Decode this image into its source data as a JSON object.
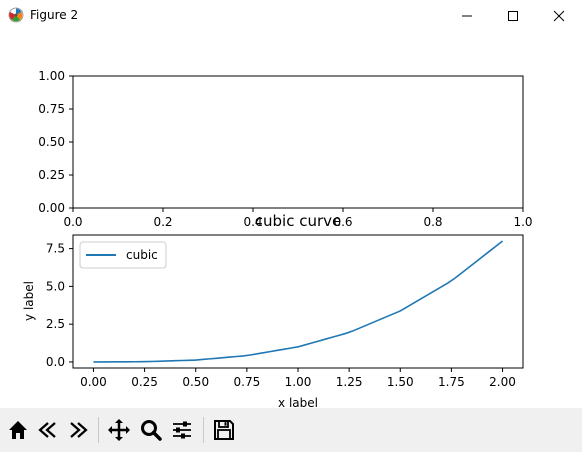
{
  "window": {
    "title": "Figure 2"
  },
  "figure": {
    "top_axes": {
      "xticks": [
        "0.0",
        "0.2",
        "0.4",
        "0.6",
        "0.8",
        "1.0"
      ],
      "xtick_values": [
        0,
        0.2,
        0.4,
        0.6,
        0.8,
        1.0
      ],
      "yticks": [
        "0.00",
        "0.25",
        "0.50",
        "0.75",
        "1.00"
      ],
      "ytick_values": [
        0,
        0.25,
        0.5,
        0.75,
        1.0
      ]
    }
  },
  "chart_data": {
    "type": "line",
    "title": "cubic curve",
    "xlabel": "x label",
    "ylabel": "y label",
    "xlim": [
      -0.1,
      2.1
    ],
    "ylim": [
      -0.4,
      8.4
    ],
    "xticks": [
      0.0,
      0.25,
      0.5,
      0.75,
      1.0,
      1.25,
      1.5,
      1.75,
      2.0
    ],
    "xtick_labels": [
      "0.00",
      "0.25",
      "0.50",
      "0.75",
      "1.00",
      "1.25",
      "1.50",
      "1.75",
      "2.00"
    ],
    "yticks": [
      0.0,
      2.5,
      5.0,
      7.5
    ],
    "ytick_labels": [
      "0.0",
      "2.5",
      "5.0",
      "7.5"
    ],
    "grid": false,
    "legend_position": "upper-left",
    "series": [
      {
        "name": "cubic",
        "color": "#1f77b4",
        "x": [
          0.0,
          0.25,
          0.5,
          0.75,
          1.0,
          1.25,
          1.5,
          1.75,
          2.0
        ],
        "y": [
          0.0,
          0.016,
          0.125,
          0.42,
          1.0,
          1.95,
          3.375,
          5.36,
          8.0
        ]
      }
    ]
  },
  "toolbar": {
    "buttons": [
      "home-icon",
      "back-icon",
      "forward-icon",
      "pan-icon",
      "zoom-icon",
      "configure-subplots-icon",
      "save-icon"
    ]
  }
}
